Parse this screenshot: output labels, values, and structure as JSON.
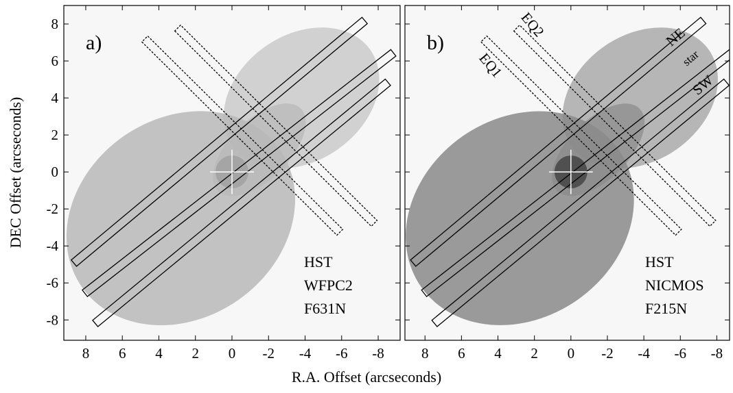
{
  "xlabel": "R.A. Offset (arcseconds)",
  "ylabel": "DEC Offset (arcseconds)",
  "chart_data": [
    {
      "type": "image",
      "panel_label": "a)",
      "annotation": [
        "HST",
        "WFPC2",
        "F631N"
      ],
      "xlim": [
        9.2,
        -9.2
      ],
      "ylim": [
        -9.1,
        9.0
      ],
      "xticks": [
        8,
        6,
        4,
        2,
        0,
        -2,
        -4,
        -6,
        -8
      ],
      "yticks": [
        -8,
        -6,
        -4,
        -2,
        0,
        2,
        4,
        6,
        8
      ],
      "nebula_color": "#b8b8b8",
      "nebula_core": "#a0a0a0"
    },
    {
      "type": "image",
      "panel_label": "b)",
      "annotation": [
        "HST",
        "NICMOS",
        "F215N"
      ],
      "slit_labels": [
        "NE",
        "star",
        "SW",
        "EQ1",
        "EQ2"
      ],
      "xlim": [
        9.1,
        -8.7
      ],
      "ylim": [
        -9.1,
        9.0
      ],
      "xticks": [
        8,
        6,
        4,
        2,
        0,
        -2,
        -4,
        -6,
        -8
      ],
      "yticks": [
        -8,
        -6,
        -4,
        -2,
        0,
        2,
        4,
        6,
        8
      ],
      "nebula_color": "#8a8a8a",
      "nebula_core": "#404040"
    }
  ]
}
